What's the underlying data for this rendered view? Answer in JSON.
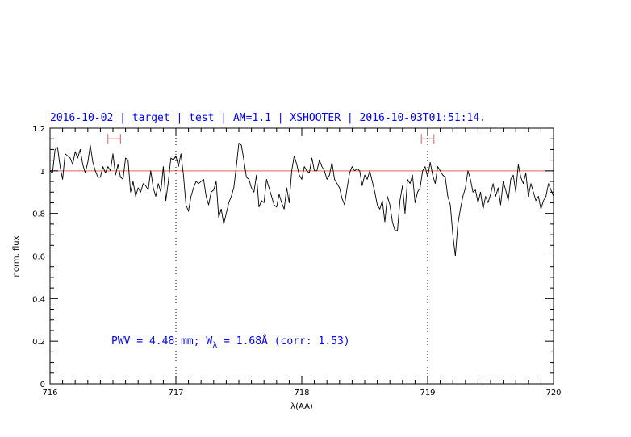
{
  "chart_data": {
    "type": "line",
    "title": "2016-10-02 | target | test | AM=1.1 | XSHOOTER | 2016-10-03T01:51:14.",
    "xlabel": "λ(AA)",
    "ylabel": "norm. flux",
    "xlim": [
      716,
      720
    ],
    "ylim": [
      0,
      1.2
    ],
    "x_ticks": [
      716,
      717,
      718,
      719,
      720
    ],
    "y_ticks": [
      0,
      0.2,
      0.4,
      0.6,
      0.8,
      1,
      1.2
    ],
    "x_tick_labels": [
      "716",
      "717",
      "718",
      "719",
      "720"
    ],
    "y_tick_labels": [
      "0",
      "0.2",
      "0.4",
      "0.6",
      "0.8",
      "1",
      "1.2"
    ],
    "reference_line": {
      "y": 1.0,
      "color": "#e06060"
    },
    "vertical_markers": [
      717.0,
      719.0
    ],
    "error_bars": [
      {
        "x_min": 716.46,
        "x_max": 716.56,
        "y": 1.15,
        "color": "#e06060"
      },
      {
        "x_min": 718.95,
        "x_max": 719.05,
        "y": 1.15,
        "color": "#e06060"
      }
    ],
    "annotation": {
      "prefix": "PWV = 4.48 mm; W",
      "subscript": "λ",
      "suffix": " = 1.68Å (corr: 1.53)"
    },
    "series": [
      {
        "color": "#000000",
        "x": [
          716.0,
          716.02,
          716.04,
          716.06,
          716.08,
          716.1,
          716.12,
          716.14,
          716.16,
          716.18,
          716.2,
          716.22,
          716.24,
          716.26,
          716.28,
          716.3,
          716.32,
          716.34,
          716.36,
          716.38,
          716.4,
          716.42,
          716.44,
          716.46,
          716.48,
          716.5,
          716.52,
          716.54,
          716.56,
          716.58,
          716.6,
          716.62,
          716.64,
          716.66,
          716.68,
          716.7,
          716.72,
          716.74,
          716.76,
          716.78,
          716.8,
          716.82,
          716.84,
          716.86,
          716.88,
          716.9,
          716.92,
          716.94,
          716.96,
          716.98,
          717.0,
          717.02,
          717.04,
          717.06,
          717.08,
          717.1,
          717.12,
          717.14,
          717.16,
          717.18,
          717.2,
          717.22,
          717.24,
          717.26,
          717.28,
          717.3,
          717.32,
          717.34,
          717.36,
          717.38,
          717.4,
          717.42,
          717.44,
          717.46,
          717.48,
          717.5,
          717.52,
          717.54,
          717.56,
          717.58,
          717.6,
          717.62,
          717.64,
          717.66,
          717.68,
          717.7,
          717.72,
          717.74,
          717.76,
          717.78,
          717.8,
          717.82,
          717.84,
          717.86,
          717.88,
          717.9,
          717.92,
          717.94,
          717.96,
          717.98,
          718.0,
          718.02,
          718.04,
          718.06,
          718.08,
          718.1,
          718.12,
          718.14,
          718.16,
          718.18,
          718.2,
          718.22,
          718.24,
          718.26,
          718.28,
          718.3,
          718.32,
          718.34,
          718.36,
          718.38,
          718.4,
          718.42,
          718.44,
          718.46,
          718.48,
          718.5,
          718.52,
          718.54,
          718.56,
          718.58,
          718.6,
          718.62,
          718.64,
          718.66,
          718.68,
          718.7,
          718.72,
          718.74,
          718.76,
          718.78,
          718.8,
          718.82,
          718.84,
          718.86,
          718.88,
          718.9,
          718.92,
          718.94,
          718.96,
          718.98,
          719.0,
          719.02,
          719.04,
          719.06,
          719.08,
          719.1,
          719.12,
          719.14,
          719.16,
          719.18,
          719.2,
          719.22,
          719.24,
          719.26,
          719.28,
          719.3,
          719.32,
          719.34,
          719.36,
          719.38,
          719.4,
          719.42,
          719.44,
          719.46,
          719.48,
          719.5,
          719.52,
          719.54,
          719.56,
          719.58,
          719.6,
          719.62,
          719.64,
          719.66,
          719.68,
          719.7,
          719.72,
          719.74,
          719.76,
          719.78,
          719.8,
          719.82,
          719.84,
          719.86,
          719.88,
          719.9,
          719.92,
          719.94,
          719.96,
          719.98,
          720.0
        ],
        "y": [
          1.0,
          0.99,
          1.1,
          1.11,
          1.02,
          0.96,
          1.08,
          1.07,
          1.06,
          1.03,
          1.09,
          1.06,
          1.1,
          1.03,
          0.99,
          1.04,
          1.12,
          1.04,
          1.0,
          0.97,
          0.97,
          1.02,
          0.99,
          1.02,
          1.0,
          1.08,
          0.98,
          1.03,
          0.97,
          0.96,
          1.06,
          1.05,
          0.9,
          0.95,
          0.88,
          0.92,
          0.9,
          0.94,
          0.93,
          0.91,
          1.0,
          0.92,
          0.88,
          0.94,
          0.9,
          1.02,
          0.86,
          0.95,
          1.06,
          1.05,
          1.07,
          1.02,
          1.08,
          0.98,
          0.84,
          0.81,
          0.88,
          0.92,
          0.95,
          0.94,
          0.95,
          0.96,
          0.88,
          0.84,
          0.9,
          0.91,
          0.95,
          0.78,
          0.82,
          0.75,
          0.8,
          0.85,
          0.88,
          0.92,
          1.02,
          1.13,
          1.12,
          1.05,
          0.97,
          0.96,
          0.92,
          0.9,
          0.98,
          0.83,
          0.86,
          0.85,
          0.96,
          0.92,
          0.88,
          0.84,
          0.83,
          0.89,
          0.85,
          0.82,
          0.92,
          0.85,
          1.0,
          1.07,
          1.03,
          0.98,
          0.96,
          1.02,
          1.0,
          0.99,
          1.06,
          1.0,
          1.0,
          1.05,
          1.02,
          1.0,
          0.96,
          0.98,
          1.04,
          0.96,
          0.94,
          0.92,
          0.87,
          0.84,
          0.92,
          0.99,
          1.02,
          1.0,
          1.01,
          1.0,
          0.93,
          0.98,
          0.96,
          1.0,
          0.95,
          0.9,
          0.84,
          0.82,
          0.86,
          0.76,
          0.88,
          0.84,
          0.76,
          0.72,
          0.72,
          0.86,
          0.93,
          0.8,
          0.96,
          0.94,
          0.98,
          0.85,
          0.9,
          0.92,
          1.0,
          1.02,
          0.97,
          1.04,
          0.98,
          0.94,
          1.02,
          1.0,
          0.98,
          0.97,
          0.88,
          0.84,
          0.7,
          0.6,
          0.75,
          0.82,
          0.88,
          0.92,
          1.0,
          0.96,
          0.9,
          0.91,
          0.85,
          0.9,
          0.82,
          0.88,
          0.85,
          0.89,
          0.94,
          0.88,
          0.92,
          0.84,
          0.95,
          0.91,
          0.86,
          0.96,
          0.98,
          0.9,
          1.03,
          0.97,
          0.94,
          0.99,
          0.88,
          0.94,
          0.9,
          0.86,
          0.88,
          0.82,
          0.86,
          0.88,
          0.94,
          0.91,
          0.88
        ]
      }
    ]
  }
}
